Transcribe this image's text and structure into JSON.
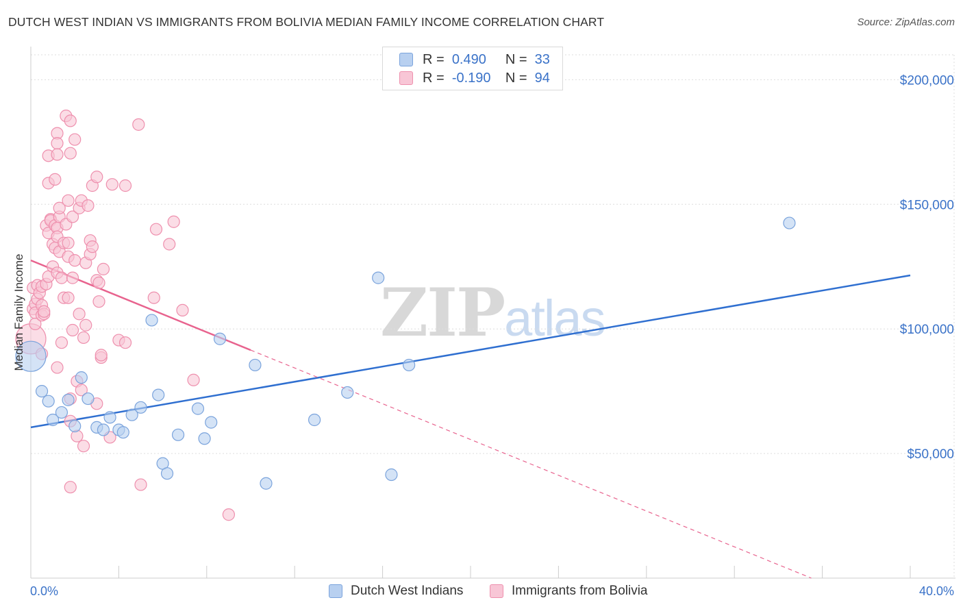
{
  "title": "DUTCH WEST INDIAN VS IMMIGRANTS FROM BOLIVIA MEDIAN FAMILY INCOME CORRELATION CHART",
  "source": "Source: ZipAtlas.com",
  "watermark": {
    "zip": "ZIP",
    "atlas": "atlas"
  },
  "legend": {
    "rows": [
      {
        "r_label": "R =",
        "r_value": "0.490",
        "n_label": "N =",
        "n_value": "33"
      },
      {
        "r_label": "R =",
        "r_value": "-0.190",
        "n_label": "N =",
        "n_value": "94"
      }
    ]
  },
  "bottom_legend": [
    "Dutch West Indians",
    "Immigrants from Bolivia"
  ],
  "colors": {
    "blue_fill": "#b8d0f0",
    "blue_stroke": "#7aa3dc",
    "blue_line": "#2f6fd0",
    "pink_fill": "#f8c6d6",
    "pink_stroke": "#ee8fad",
    "pink_line": "#e8638e",
    "tick_text": "#3a72c8",
    "grid": "#dddddd"
  },
  "chart_data": {
    "type": "scatter",
    "title": "DUTCH WEST INDIAN VS IMMIGRANTS FROM BOLIVIA MEDIAN FAMILY INCOME CORRELATION CHART",
    "xlabel": "",
    "ylabel": "Median Family Income",
    "xlim": [
      0,
      40
    ],
    "ylim": [
      0,
      210000
    ],
    "x_tick_labels": [
      "0.0%",
      "40.0%"
    ],
    "y_ticks": [
      50000,
      100000,
      150000,
      200000
    ],
    "y_tick_labels": [
      "$50,000",
      "$100,000",
      "$150,000",
      "$200,000"
    ],
    "grid": true,
    "series": [
      {
        "name": "Dutch West Indians",
        "R": 0.49,
        "N": 33,
        "trend": {
          "x": [
            0,
            40
          ],
          "y": [
            60500,
            121500
          ]
        },
        "points": [
          {
            "x": 0.0,
            "y": 89000,
            "large": true
          },
          {
            "x": 0.5,
            "y": 75000
          },
          {
            "x": 0.8,
            "y": 71000
          },
          {
            "x": 1.0,
            "y": 63500
          },
          {
            "x": 1.4,
            "y": 66500
          },
          {
            "x": 1.7,
            "y": 71500
          },
          {
            "x": 2.0,
            "y": 61000
          },
          {
            "x": 2.3,
            "y": 80500
          },
          {
            "x": 2.6,
            "y": 72000
          },
          {
            "x": 3.0,
            "y": 60500
          },
          {
            "x": 3.3,
            "y": 59500
          },
          {
            "x": 3.6,
            "y": 64500
          },
          {
            "x": 4.0,
            "y": 59500
          },
          {
            "x": 4.2,
            "y": 58500
          },
          {
            "x": 4.6,
            "y": 65500
          },
          {
            "x": 5.0,
            "y": 68500
          },
          {
            "x": 5.5,
            "y": 103500
          },
          {
            "x": 5.8,
            "y": 73500
          },
          {
            "x": 6.0,
            "y": 46000
          },
          {
            "x": 6.2,
            "y": 42000
          },
          {
            "x": 6.7,
            "y": 57500
          },
          {
            "x": 7.6,
            "y": 68000
          },
          {
            "x": 7.9,
            "y": 56000
          },
          {
            "x": 8.2,
            "y": 62500
          },
          {
            "x": 8.6,
            "y": 96000
          },
          {
            "x": 10.2,
            "y": 85500
          },
          {
            "x": 10.7,
            "y": 38000
          },
          {
            "x": 12.9,
            "y": 63500
          },
          {
            "x": 14.4,
            "y": 74500
          },
          {
            "x": 15.8,
            "y": 120500
          },
          {
            "x": 16.4,
            "y": 41500
          },
          {
            "x": 17.2,
            "y": 85500
          },
          {
            "x": 34.5,
            "y": 142500
          }
        ]
      },
      {
        "name": "Immigrants from Bolivia",
        "R": -0.19,
        "N": 94,
        "trend_solid": {
          "x": [
            0,
            10.0
          ],
          "y": [
            127500,
            91500
          ]
        },
        "trend_dashed": {
          "x": [
            10.0,
            35.5
          ],
          "y": [
            91500,
            0
          ]
        },
        "points": [
          {
            "x": 0.0,
            "y": 96000,
            "large": true
          },
          {
            "x": 0.1,
            "y": 116500
          },
          {
            "x": 0.1,
            "y": 108000
          },
          {
            "x": 0.2,
            "y": 110000
          },
          {
            "x": 0.2,
            "y": 106500
          },
          {
            "x": 0.2,
            "y": 102000
          },
          {
            "x": 0.3,
            "y": 117500
          },
          {
            "x": 0.3,
            "y": 112000
          },
          {
            "x": 0.4,
            "y": 114500
          },
          {
            "x": 0.5,
            "y": 117000
          },
          {
            "x": 0.5,
            "y": 109500
          },
          {
            "x": 0.5,
            "y": 105500
          },
          {
            "x": 0.5,
            "y": 90000
          },
          {
            "x": 0.6,
            "y": 106000
          },
          {
            "x": 0.6,
            "y": 107000
          },
          {
            "x": 0.7,
            "y": 118000
          },
          {
            "x": 0.7,
            "y": 141500
          },
          {
            "x": 0.8,
            "y": 169500
          },
          {
            "x": 0.8,
            "y": 138500
          },
          {
            "x": 0.8,
            "y": 121000
          },
          {
            "x": 0.8,
            "y": 158500
          },
          {
            "x": 0.9,
            "y": 144000
          },
          {
            "x": 0.9,
            "y": 143500
          },
          {
            "x": 1.0,
            "y": 134000
          },
          {
            "x": 1.0,
            "y": 125000
          },
          {
            "x": 1.1,
            "y": 132500
          },
          {
            "x": 1.1,
            "y": 141500
          },
          {
            "x": 1.1,
            "y": 160000
          },
          {
            "x": 1.2,
            "y": 140500
          },
          {
            "x": 1.2,
            "y": 137000
          },
          {
            "x": 1.2,
            "y": 178500
          },
          {
            "x": 1.2,
            "y": 174500
          },
          {
            "x": 1.2,
            "y": 122500
          },
          {
            "x": 1.3,
            "y": 131000
          },
          {
            "x": 1.3,
            "y": 145000
          },
          {
            "x": 1.3,
            "y": 148500
          },
          {
            "x": 1.2,
            "y": 84500
          },
          {
            "x": 1.2,
            "y": 170000
          },
          {
            "x": 1.4,
            "y": 120500
          },
          {
            "x": 1.4,
            "y": 94500
          },
          {
            "x": 1.5,
            "y": 134500
          },
          {
            "x": 1.5,
            "y": 112500
          },
          {
            "x": 1.6,
            "y": 185500
          },
          {
            "x": 1.6,
            "y": 142000
          },
          {
            "x": 1.7,
            "y": 134500
          },
          {
            "x": 1.7,
            "y": 129000
          },
          {
            "x": 1.7,
            "y": 151500
          },
          {
            "x": 1.7,
            "y": 112500
          },
          {
            "x": 1.8,
            "y": 183500
          },
          {
            "x": 1.8,
            "y": 170500
          },
          {
            "x": 1.8,
            "y": 63000
          },
          {
            "x": 1.8,
            "y": 36500
          },
          {
            "x": 1.8,
            "y": 72000
          },
          {
            "x": 1.9,
            "y": 99500
          },
          {
            "x": 1.9,
            "y": 120500
          },
          {
            "x": 1.9,
            "y": 145000
          },
          {
            "x": 2.0,
            "y": 176000
          },
          {
            "x": 2.0,
            "y": 127500
          },
          {
            "x": 2.1,
            "y": 79000
          },
          {
            "x": 2.1,
            "y": 57000
          },
          {
            "x": 2.2,
            "y": 106000
          },
          {
            "x": 2.2,
            "y": 148500
          },
          {
            "x": 2.3,
            "y": 151500
          },
          {
            "x": 2.3,
            "y": 75500
          },
          {
            "x": 2.4,
            "y": 53000
          },
          {
            "x": 2.4,
            "y": 96500
          },
          {
            "x": 2.5,
            "y": 126500
          },
          {
            "x": 2.5,
            "y": 101500
          },
          {
            "x": 2.6,
            "y": 149500
          },
          {
            "x": 2.7,
            "y": 135500
          },
          {
            "x": 2.7,
            "y": 130000
          },
          {
            "x": 2.8,
            "y": 157500
          },
          {
            "x": 2.8,
            "y": 133000
          },
          {
            "x": 3.0,
            "y": 161000
          },
          {
            "x": 3.0,
            "y": 119500
          },
          {
            "x": 3.0,
            "y": 70000
          },
          {
            "x": 3.1,
            "y": 118500
          },
          {
            "x": 3.1,
            "y": 111000
          },
          {
            "x": 3.2,
            "y": 88500
          },
          {
            "x": 3.2,
            "y": 89500
          },
          {
            "x": 3.3,
            "y": 124000
          },
          {
            "x": 3.6,
            "y": 56500
          },
          {
            "x": 3.7,
            "y": 158000
          },
          {
            "x": 4.0,
            "y": 95500
          },
          {
            "x": 4.3,
            "y": 157500
          },
          {
            "x": 4.3,
            "y": 94500
          },
          {
            "x": 4.9,
            "y": 182000
          },
          {
            "x": 5.0,
            "y": 37500
          },
          {
            "x": 5.6,
            "y": 112500
          },
          {
            "x": 5.7,
            "y": 140000
          },
          {
            "x": 6.3,
            "y": 134000
          },
          {
            "x": 6.5,
            "y": 143000
          },
          {
            "x": 6.9,
            "y": 107500
          },
          {
            "x": 7.4,
            "y": 79500
          },
          {
            "x": 9.0,
            "y": 25500
          }
        ]
      }
    ]
  }
}
